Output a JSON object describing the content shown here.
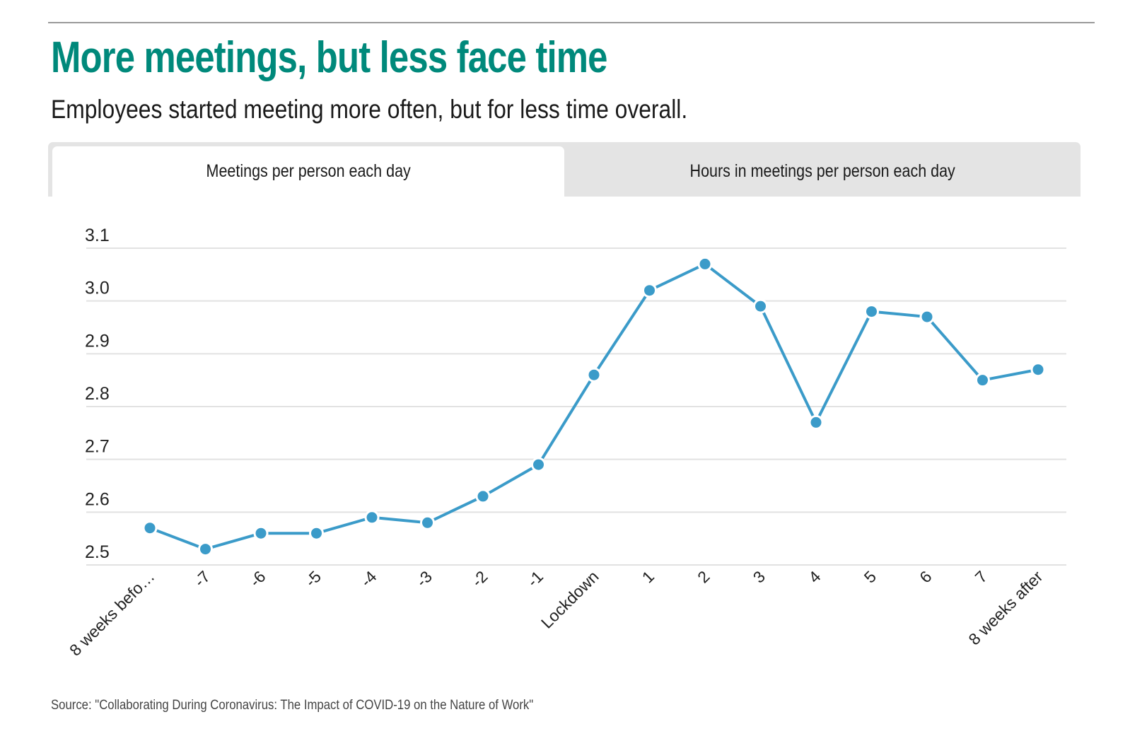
{
  "header": {
    "title": "More meetings, but less face time",
    "subtitle": "Employees started meeting more often, but for less time overall."
  },
  "tabs": [
    {
      "label": "Meetings per person each day",
      "active": true
    },
    {
      "label": "Hours in meetings per person each day",
      "active": false
    }
  ],
  "colors": {
    "title": "#00897b",
    "series": "#3b9bc9",
    "grid": "#e2e2e2"
  },
  "chart_data": {
    "type": "line",
    "title": "Meetings per person each day",
    "xlabel": "",
    "ylabel": "",
    "categories": [
      "8 weeks befo…",
      "-7",
      "-6",
      "-5",
      "-4",
      "-3",
      "-2",
      "-1",
      "Lockdown",
      "1",
      "2",
      "3",
      "4",
      "5",
      "6",
      "7",
      "8 weeks after"
    ],
    "series": [
      {
        "name": "Meetings per person each day",
        "values": [
          2.57,
          2.53,
          2.56,
          2.56,
          2.59,
          2.58,
          2.63,
          2.69,
          2.86,
          3.02,
          3.07,
          2.99,
          2.77,
          2.98,
          2.97,
          2.85,
          2.87
        ]
      }
    ],
    "ylim": [
      2.5,
      3.1
    ],
    "yticks": [
      "2.5",
      "2.6",
      "2.7",
      "2.8",
      "2.9",
      "3.0",
      "3.1"
    ],
    "grid": true,
    "legend": "none",
    "markers": true
  },
  "footer": {
    "source": "Source: \"Collaborating During Coronavirus: The Impact of COVID-19 on the Nature of Work\""
  }
}
